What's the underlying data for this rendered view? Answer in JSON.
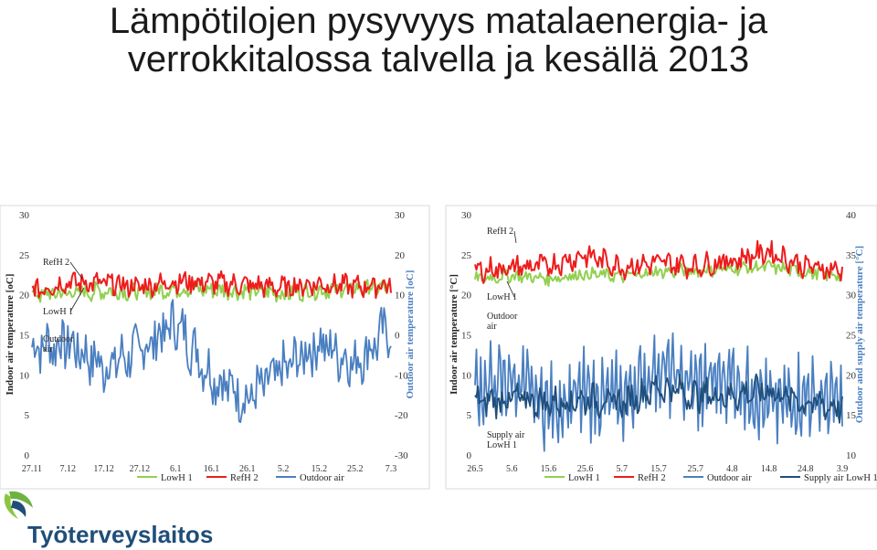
{
  "title_line1": "Lämpötilojen pysyvyys matalaenergia- ja",
  "title_line2": "verrokkitalossa talvella ja kesällä 2013",
  "logo_text": "Työterveyslaitos",
  "chart_data": [
    {
      "type": "line",
      "period": "winter",
      "ylabel_left": "Indoor air temperature [oC]",
      "ylabel_right": "Outdoor air temperature [oC]",
      "ylim_left": [
        0,
        30
      ],
      "ylim_right": [
        -30,
        30
      ],
      "yticks_left": [
        "0",
        "5",
        "10",
        "15",
        "20",
        "25",
        "30"
      ],
      "yticks_right": [
        "-30",
        "-20",
        "-10",
        "0",
        "10",
        "20",
        "30"
      ],
      "categories": [
        "27.11",
        "7.12",
        "17.12",
        "27.12",
        "6.1",
        "16.1",
        "26.1",
        "5.2",
        "15.2",
        "25.2",
        "7.3"
      ],
      "series": [
        {
          "name": "LowH 1",
          "color": "#92d050",
          "axis": "left",
          "values": [
            20.0,
            20.2,
            20.5,
            20.3,
            20.8,
            20.6,
            20.4,
            20.2,
            20.6,
            20.8,
            20.9
          ]
        },
        {
          "name": "RefH 2",
          "color": "#ee1c1c",
          "axis": "left",
          "values": [
            20.5,
            21.6,
            21.4,
            21.0,
            21.7,
            21.5,
            21.2,
            20.9,
            21.4,
            21.0,
            21.3
          ]
        },
        {
          "name": "Outdoor air",
          "color": "#4a7fc1",
          "axis": "right",
          "values": [
            -3,
            -2,
            -8,
            -4,
            3,
            -10,
            -16,
            -9,
            -2,
            -7,
            2
          ]
        }
      ],
      "annotations": [
        "RefH 2",
        "LowH 1",
        "Outdoor air"
      ],
      "legend": [
        "LowH 1",
        "RefH 2",
        "Outdoor air"
      ],
      "legend_position": "bottom"
    },
    {
      "type": "line",
      "period": "summer",
      "ylabel_left": "Indoor air temperature [°C]",
      "ylabel_right": "Outdoor and supply air temperature [°C]",
      "ylim_left": [
        0,
        30
      ],
      "ylim_right": [
        10,
        40
      ],
      "yticks_left": [
        "0",
        "5",
        "10",
        "15",
        "20",
        "25",
        "30"
      ],
      "yticks_right": [
        "10",
        "15",
        "20",
        "25",
        "30",
        "35",
        "40"
      ],
      "categories": [
        "26.5",
        "5.6",
        "15.6",
        "25.6",
        "5.7",
        "15.7",
        "25.7",
        "4.8",
        "14.8",
        "24.8",
        "3.9"
      ],
      "series": [
        {
          "name": "LowH 1",
          "color": "#92d050",
          "axis": "left",
          "values": [
            22.0,
            22.4,
            22.0,
            22.6,
            22.3,
            22.9,
            23.0,
            23.3,
            23.5,
            22.8,
            22.4
          ]
        },
        {
          "name": "RefH 2",
          "color": "#ee1c1c",
          "axis": "left",
          "values": [
            23.0,
            23.4,
            23.6,
            25.0,
            23.5,
            24.0,
            23.6,
            24.3,
            25.4,
            23.5,
            23.0
          ]
        },
        {
          "name": "Outdoor air",
          "color": "#4a7fc1",
          "axis": "right",
          "values": [
            18.0,
            19.5,
            16.0,
            17.5,
            17.0,
            21.0,
            18.5,
            20.0,
            16.0,
            17.5,
            16.5
          ]
        },
        {
          "name": "Supply air LowH 1",
          "color": "#1f4e79",
          "axis": "right",
          "values": [
            16.5,
            17.0,
            16.5,
            17.0,
            16.5,
            18.5,
            17.5,
            17.5,
            18.0,
            16.5,
            16.0
          ]
        }
      ],
      "annotations": [
        "RefH 2",
        "LowH 1",
        "Outdoor air",
        "Supply air LowH 1"
      ],
      "legend": [
        "LowH 1",
        "RefH 2",
        "Outdoor air",
        "Supply air LowH 1"
      ],
      "legend_position": "bottom"
    }
  ]
}
